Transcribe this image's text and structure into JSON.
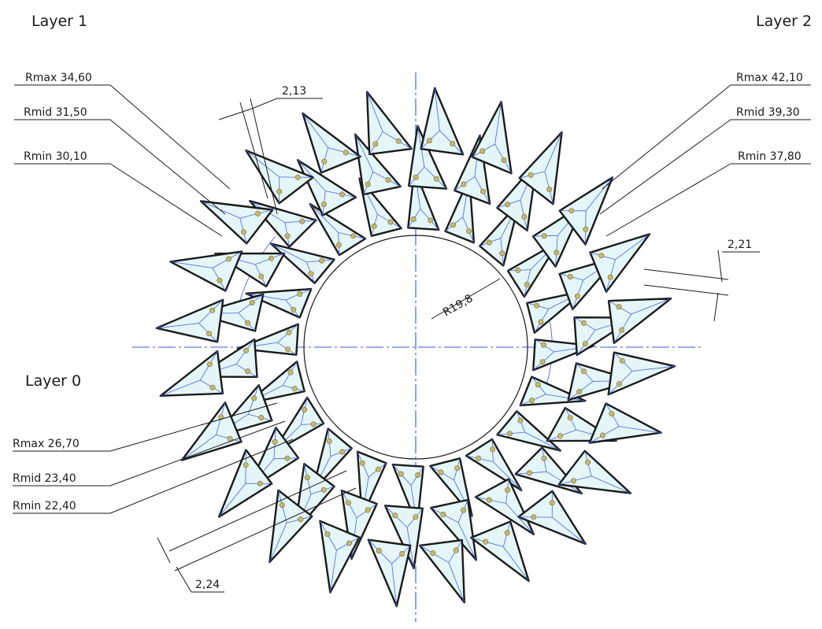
{
  "layers": [
    {
      "title": "Layer 0",
      "tooth_count": 20,
      "rmin": "Rmin 22,40",
      "rmid": "Rmid 23,40",
      "rmax": "Rmax 26,70",
      "gap": "2,24"
    },
    {
      "title": "Layer 1",
      "tooth_count": 22,
      "rmin": "Rmin 30,10",
      "rmid": "Rmid 31,50",
      "rmax": "Rmax 34,60",
      "gap": "2,13"
    },
    {
      "title": "Layer 2",
      "tooth_count": 24,
      "rmin": "Rmin 37,80",
      "rmid": "Rmid 39,30",
      "rmax": "Rmax 42,10",
      "gap": "2,21"
    }
  ],
  "bore_label": "R19,8",
  "colors": {
    "outline": "#1a1a1a",
    "center_line": "#3a55e0",
    "construction": "#4a63e6",
    "fill": "#e4f6f8",
    "hole": "#c9b86a"
  }
}
